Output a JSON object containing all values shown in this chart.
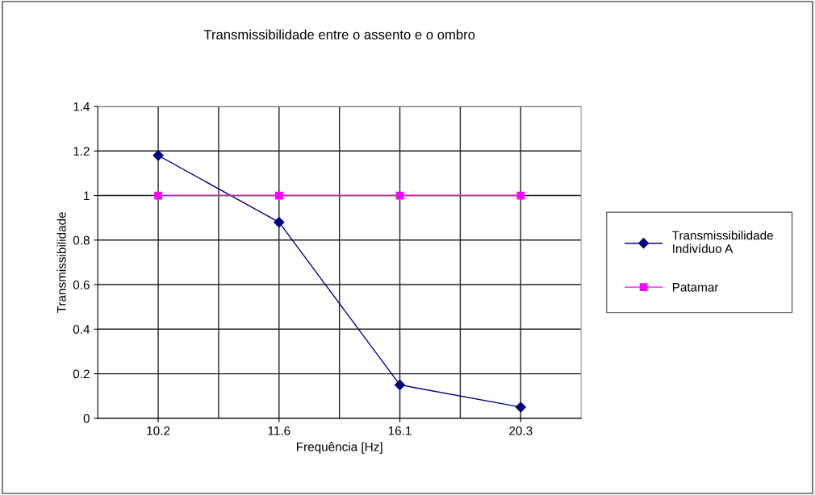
{
  "chart_data": {
    "type": "line",
    "title": "Transmissibilidade entre o assento e o ombro",
    "xlabel": "Frequência [Hz]",
    "ylabel": "Transmissibilidade",
    "categories": [
      "10.2",
      "11.6",
      "16.1",
      "20.3"
    ],
    "series": [
      {
        "name": "Transmissibilidade\nIndivíduo A",
        "color": "#000080",
        "marker": "diamond",
        "values": [
          1.18,
          0.88,
          0.15,
          0.05
        ]
      },
      {
        "name": "Patamar",
        "color": "#ff00ff",
        "marker": "square",
        "values": [
          1,
          1,
          1,
          1
        ]
      }
    ],
    "ylim": [
      0,
      1.4
    ],
    "yticks": [
      0,
      0.2,
      0.4,
      0.6,
      0.8,
      1,
      1.2,
      1.4
    ],
    "grid": true,
    "legend": "right",
    "line_style": "solid"
  }
}
